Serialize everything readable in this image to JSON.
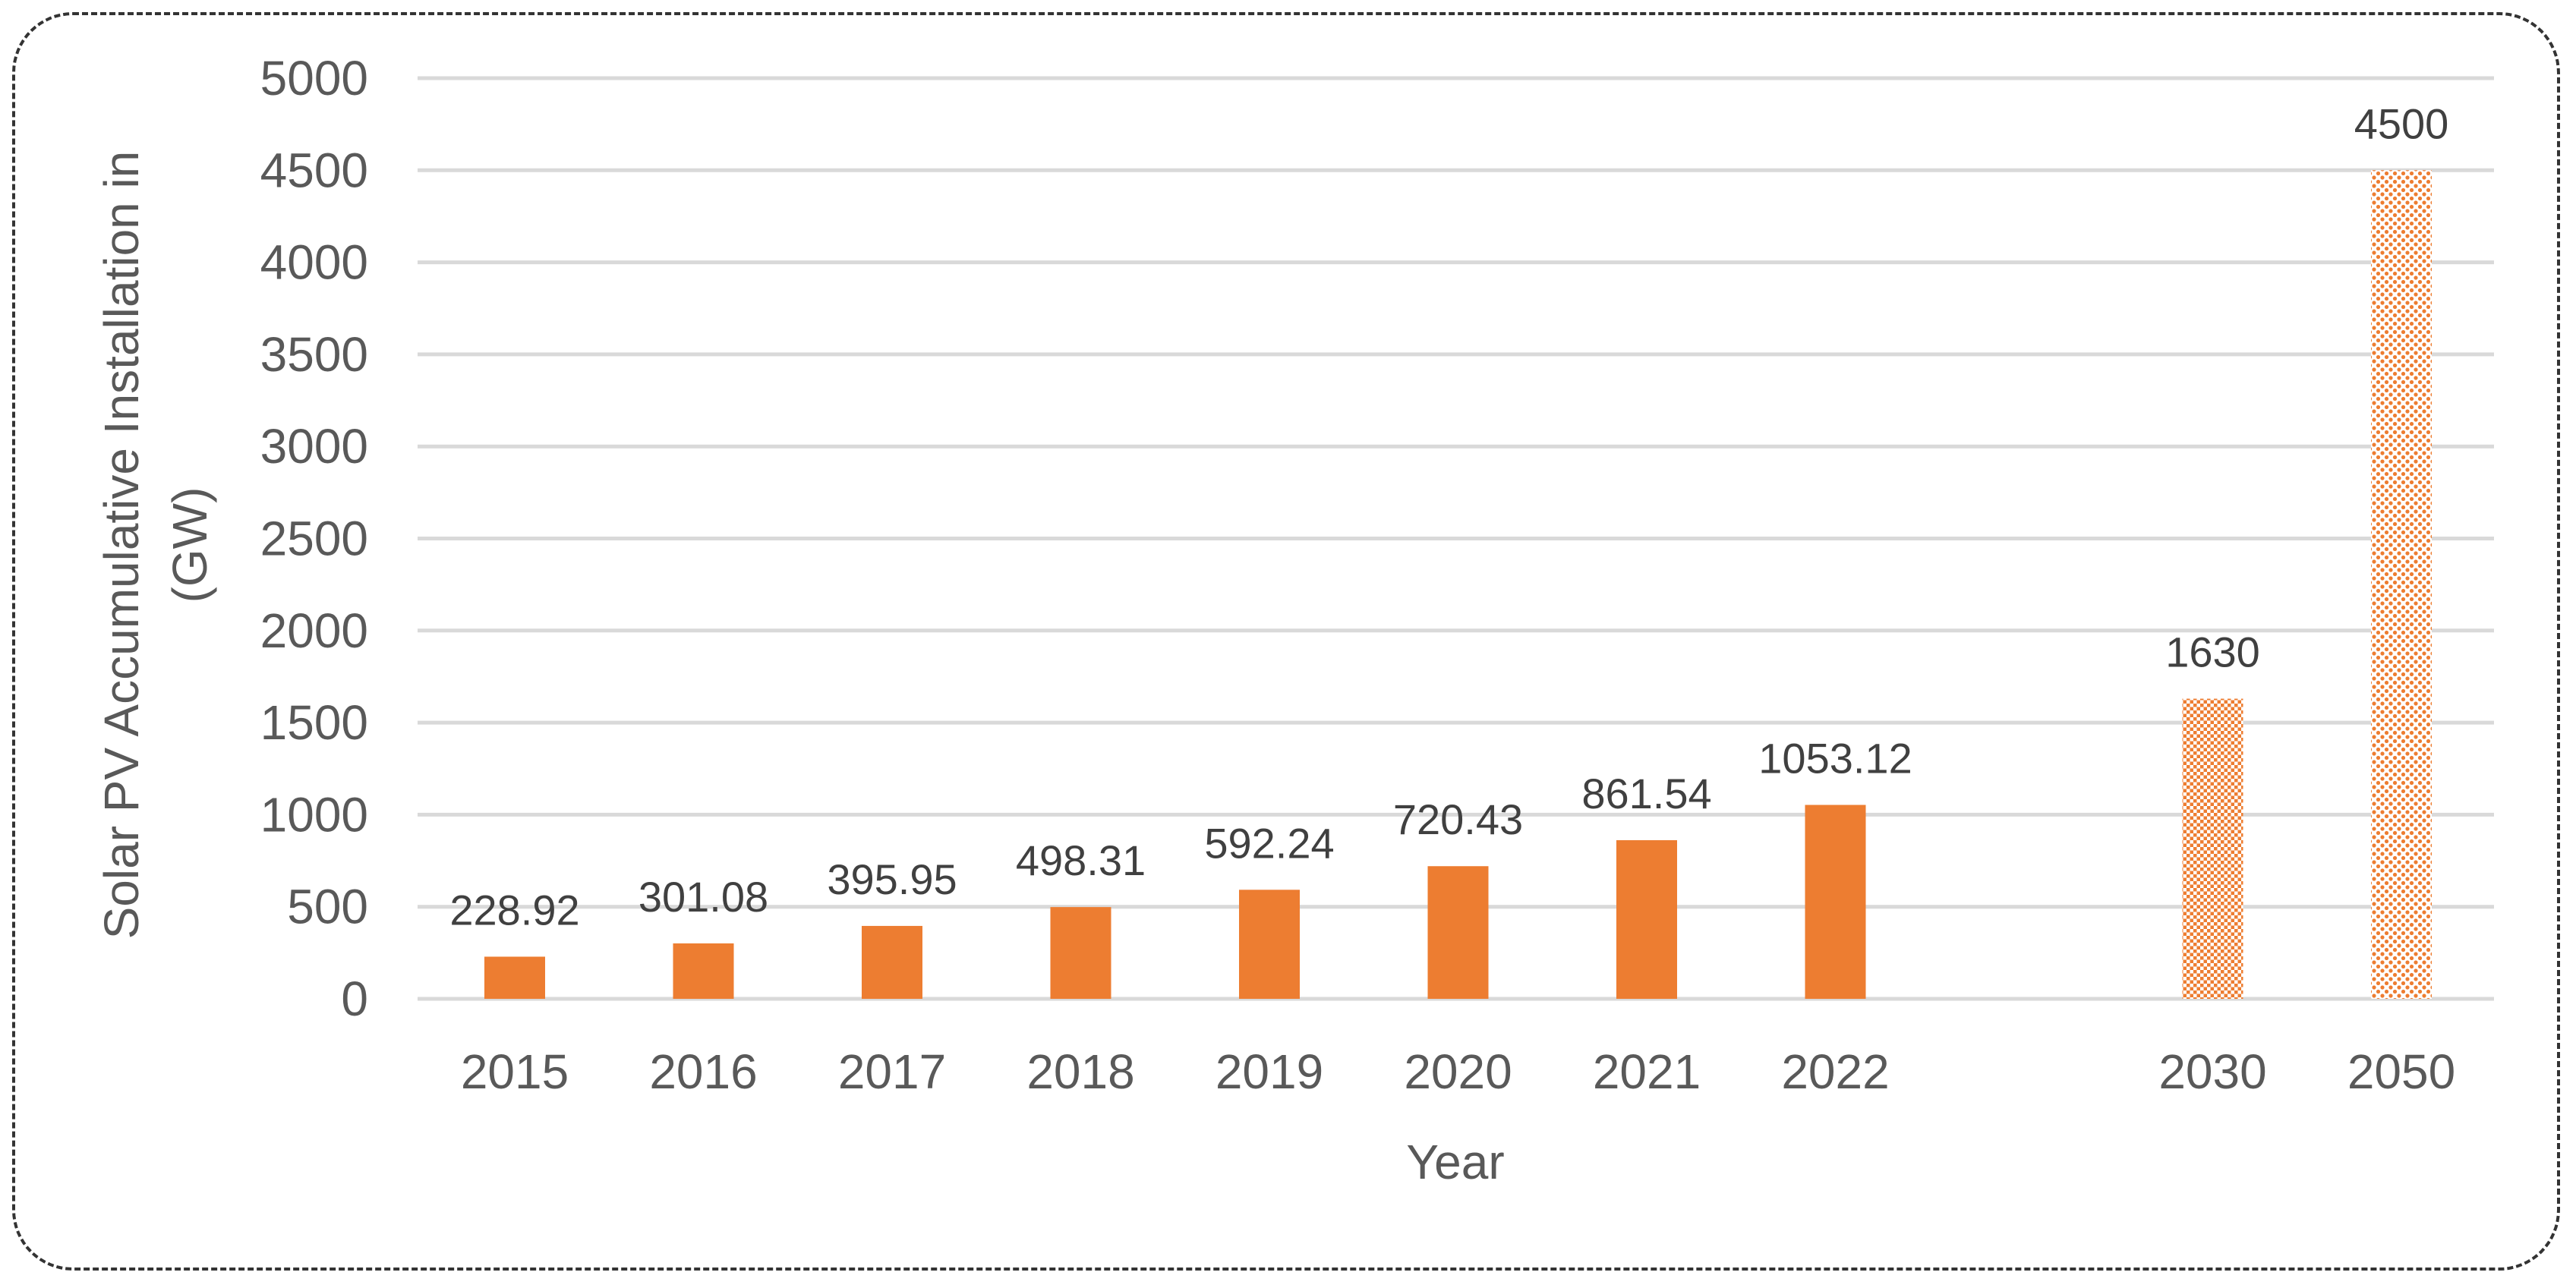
{
  "chart_data": {
    "type": "bar",
    "title": "",
    "xlabel": "Year",
    "ylabel_lines": [
      "Solar PV Accumulative Installation in",
      "(GW)"
    ],
    "categories": [
      "2015",
      "2016",
      "2017",
      "2018",
      "2019",
      "2020",
      "2021",
      "2022",
      "2030",
      "2050"
    ],
    "values": [
      228.92,
      301.08,
      395.95,
      498.31,
      592.24,
      720.43,
      861.54,
      1053.12,
      1630,
      4500
    ],
    "data_labels": [
      "228.92",
      "301.08",
      "395.95",
      "498.31",
      "592.24",
      "720.43",
      "861.54",
      "1053.12",
      "1630",
      "4500"
    ],
    "bar_styles": [
      "solid",
      "solid",
      "solid",
      "solid",
      "solid",
      "solid",
      "solid",
      "solid",
      "checker-pattern",
      "dotted-pattern"
    ],
    "ylim": [
      0,
      5000
    ],
    "yticks": [
      0,
      500,
      1000,
      1500,
      2000,
      2500,
      3000,
      3500,
      4000,
      4500,
      5000
    ],
    "grid": true,
    "legend": "none",
    "colors": {
      "bar": "#ED7D31",
      "grid": "#D9D9D9",
      "tick_text": "#595959",
      "label_text": "#404040",
      "frame": "#333333"
    }
  }
}
